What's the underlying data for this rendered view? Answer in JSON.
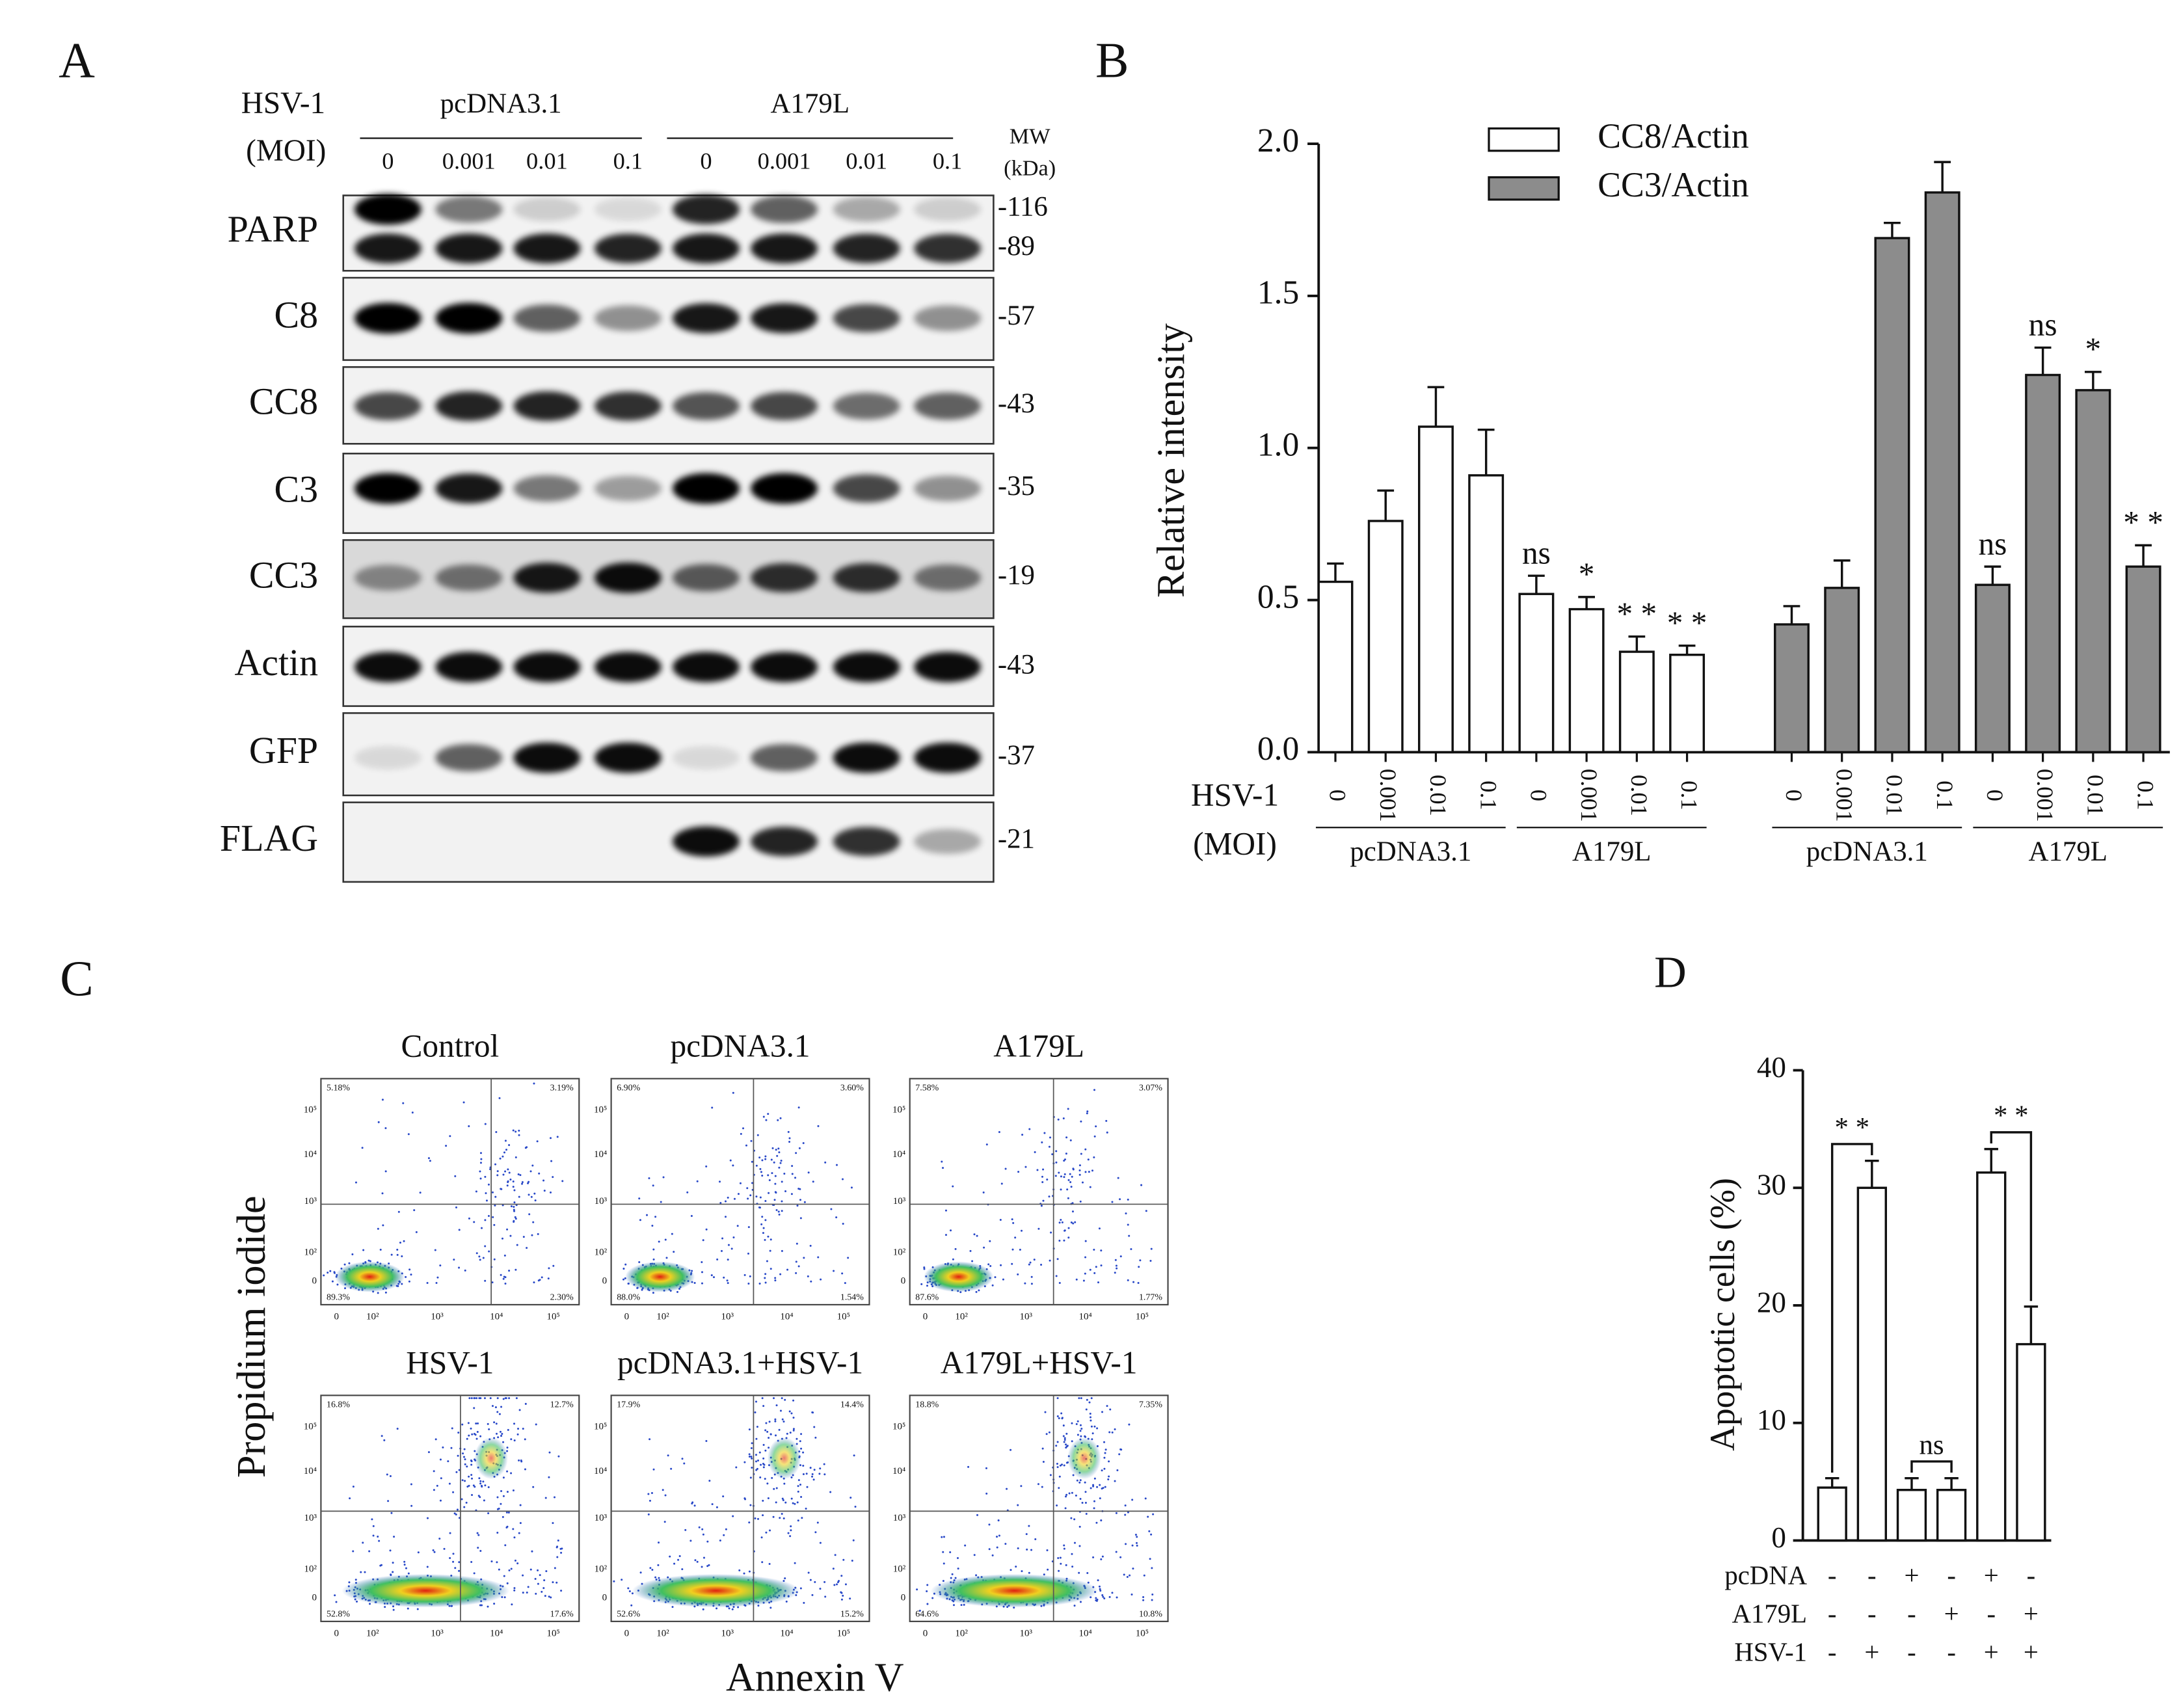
{
  "panel_labels": [
    "A",
    "B",
    "C",
    "D"
  ],
  "blot": {
    "header_label": "HSV-1",
    "header_sub": "(MOI)",
    "groups": [
      "pcDNA3.1",
      "A179L"
    ],
    "lanes": [
      "0",
      "0.001",
      "0.01",
      "0.1",
      "0",
      "0.001",
      "0.01",
      "0.1"
    ],
    "mw_label": "MW",
    "mw_unit": "(kDa)",
    "rows": [
      {
        "label": "PARP",
        "mw": [
          "-116",
          "-89"
        ]
      },
      {
        "label": "C8",
        "mw": [
          "-57"
        ]
      },
      {
        "label": "CC8",
        "mw": [
          "-43"
        ]
      },
      {
        "label": "C3",
        "mw": [
          "-35"
        ]
      },
      {
        "label": "CC3",
        "mw": [
          "-19"
        ]
      },
      {
        "label": "Actin",
        "mw": [
          "-43"
        ]
      },
      {
        "label": "GFP",
        "mw": [
          "-37"
        ]
      },
      {
        "label": "FLAG",
        "mw": [
          "-21"
        ]
      }
    ]
  },
  "chart_data": [
    {
      "type": "bar",
      "ylabel": "Relative intensity",
      "xlabel": [
        "HSV-1",
        "(MOI)"
      ],
      "categories": [
        "0",
        "0.001",
        "0.01",
        "0.1",
        "0",
        "0.001",
        "0.01",
        "0.1"
      ],
      "groups": [
        "pcDNA3.1",
        "A179L"
      ],
      "ylim": [
        0,
        2
      ],
      "yticks": [
        {
          "value": 0,
          "label": "0.0"
        },
        0.5,
        {
          "value": 1,
          "label": "1.0"
        },
        1.5,
        {
          "value": 2,
          "label": "2.0"
        }
      ],
      "series": [
        {
          "name": "CC8/Actin",
          "color": "#ffffff",
          "values": [
            0.56,
            0.76,
            1.07,
            0.91,
            0.52,
            0.47,
            0.33,
            0.32
          ],
          "errors": [
            0.06,
            0.1,
            0.13,
            0.15,
            0.06,
            0.04,
            0.05,
            0.03
          ],
          "annotations": [
            null,
            null,
            null,
            null,
            "ns",
            "*",
            "* *",
            "* *"
          ]
        },
        {
          "name": "CC3/Actin",
          "color": "#8c8c8c",
          "values": [
            0.42,
            0.54,
            1.69,
            1.84,
            0.55,
            1.24,
            1.19,
            0.61
          ],
          "errors": [
            0.06,
            0.09,
            0.05,
            0.1,
            0.06,
            0.09,
            0.06,
            0.07
          ],
          "annotations": [
            null,
            null,
            null,
            null,
            "ns",
            "ns",
            "*",
            "* *"
          ]
        }
      ]
    },
    {
      "type": "bar",
      "ylabel": "Apoptotic cells (%)",
      "color": "#ffffff",
      "ylim": [
        0,
        40
      ],
      "yticks": [
        0,
        10,
        20,
        30,
        40
      ],
      "values": [
        4.5,
        30,
        4.3,
        4.3,
        31.3,
        16.7
      ],
      "errors": [
        0.8,
        2.3,
        1,
        1,
        2,
        3.2
      ],
      "comparison_labels": [
        "* *",
        "ns",
        "* *"
      ],
      "conditions": [
        {
          "name": "pcDNA",
          "signs": [
            "-",
            "-",
            "+",
            "-",
            "+",
            "-"
          ]
        },
        {
          "name": "A179L",
          "signs": [
            "-",
            "-",
            "-",
            "+",
            "-",
            "+"
          ]
        },
        {
          "name": "HSV-1",
          "signs": [
            "-",
            "+",
            "-",
            "-",
            "+",
            "+"
          ]
        }
      ]
    }
  ],
  "flow": {
    "xlabel": "Annexin V",
    "ylabel": "Propidium iodide",
    "ticks": [
      "0",
      "10²",
      "10³",
      "10⁴",
      "10⁵"
    ],
    "plots": [
      {
        "title": "Control",
        "quadrants": [
          "5.18%",
          "3.19%",
          "89.3%",
          "2.30%"
        ]
      },
      {
        "title": "pcDNA3.1",
        "quadrants": [
          "6.90%",
          "3.60%",
          "88.0%",
          "1.54%"
        ]
      },
      {
        "title": "A179L",
        "quadrants": [
          "7.58%",
          "3.07%",
          "87.6%",
          "1.77%"
        ]
      },
      {
        "title": "HSV-1",
        "quadrants": [
          "16.8%",
          "12.7%",
          "52.8%",
          "17.6%"
        ]
      },
      {
        "title": "pcDNA3.1+HSV-1",
        "quadrants": [
          "17.9%",
          "14.4%",
          "52.6%",
          "15.2%"
        ]
      },
      {
        "title": "A179L+HSV-1",
        "quadrants": [
          "18.8%",
          "7.35%",
          "64.6%",
          "10.8%"
        ]
      }
    ]
  }
}
